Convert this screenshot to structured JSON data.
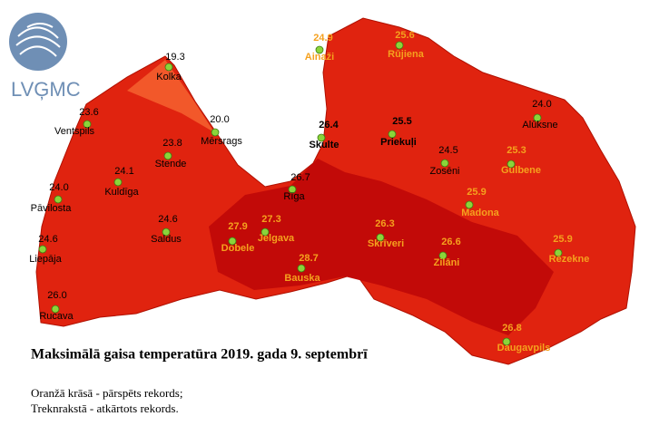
{
  "logo": {
    "text": "LVĢMC"
  },
  "title": "Maksimālā gaisa temperatūra 2019. gada 9. septembrī",
  "legend": [
    "Oranžā krāsā - pārspēts rekords;",
    "Treknrakstā - atkārtots rekords."
  ],
  "stations": [
    {
      "name": "Kolka",
      "value": "19.3",
      "style": "normal"
    },
    {
      "name": "Ventspils",
      "value": "23.6",
      "style": "normal"
    },
    {
      "name": "Mērsrags",
      "value": "20.0",
      "style": "normal"
    },
    {
      "name": "Stende",
      "value": "23.8",
      "style": "normal"
    },
    {
      "name": "Kuldīga",
      "value": "24.1",
      "style": "normal"
    },
    {
      "name": "Pāvilosta",
      "value": "24.0",
      "style": "normal"
    },
    {
      "name": "Saldus",
      "value": "24.6",
      "style": "normal"
    },
    {
      "name": "Liepāja",
      "value": "24.6",
      "style": "normal"
    },
    {
      "name": "Rucava",
      "value": "26.0",
      "style": "normal"
    },
    {
      "name": "Rīga",
      "value": "26.7",
      "style": "normal"
    },
    {
      "name": "Dobele",
      "value": "27.9",
      "style": "record"
    },
    {
      "name": "Jelgava",
      "value": "27.3",
      "style": "record"
    },
    {
      "name": "Bauska",
      "value": "28.7",
      "style": "record"
    },
    {
      "name": "Skulte",
      "value": "26.4",
      "style": "repeated"
    },
    {
      "name": "Ainaži",
      "value": "24.9",
      "style": "record"
    },
    {
      "name": "Rūjiena",
      "value": "25.6",
      "style": "record"
    },
    {
      "name": "Priekuļi",
      "value": "25.5",
      "style": "repeated"
    },
    {
      "name": "Alūksne",
      "value": "24.0",
      "style": "normal"
    },
    {
      "name": "Zosēni",
      "value": "24.5",
      "style": "normal"
    },
    {
      "name": "Gulbene",
      "value": "25.3",
      "style": "record"
    },
    {
      "name": "Madona",
      "value": "25.9",
      "style": "record"
    },
    {
      "name": "Skrīveri",
      "value": "26.3",
      "style": "record"
    },
    {
      "name": "Zilāni",
      "value": "26.6",
      "style": "record"
    },
    {
      "name": "Rēzekne",
      "value": "25.9",
      "style": "record"
    },
    {
      "name": "Daugavpils",
      "value": "26.8",
      "style": "record"
    }
  ]
}
